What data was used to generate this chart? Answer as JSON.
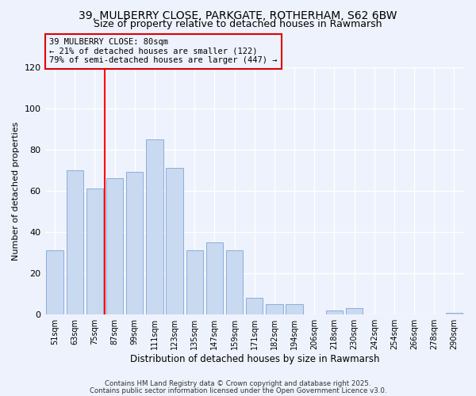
{
  "title1": "39, MULBERRY CLOSE, PARKGATE, ROTHERHAM, S62 6BW",
  "title2": "Size of property relative to detached houses in Rawmarsh",
  "xlabel": "Distribution of detached houses by size in Rawmarsh",
  "ylabel": "Number of detached properties",
  "categories": [
    "51sqm",
    "63sqm",
    "75sqm",
    "87sqm",
    "99sqm",
    "111sqm",
    "123sqm",
    "135sqm",
    "147sqm",
    "159sqm",
    "171sqm",
    "182sqm",
    "194sqm",
    "206sqm",
    "218sqm",
    "230sqm",
    "242sqm",
    "254sqm",
    "266sqm",
    "278sqm",
    "290sqm"
  ],
  "values": [
    31,
    70,
    61,
    66,
    69,
    85,
    71,
    31,
    35,
    31,
    8,
    5,
    5,
    0,
    2,
    3,
    0,
    0,
    0,
    0,
    1
  ],
  "bar_color": "#c8d9f0",
  "bar_edge_color": "#8aaedd",
  "red_line_index": 2,
  "annotation_title": "39 MULBERRY CLOSE: 80sqm",
  "annotation_line1": "← 21% of detached houses are smaller (122)",
  "annotation_line2": "79% of semi-detached houses are larger (447) →",
  "ylim": [
    0,
    120
  ],
  "yticks": [
    0,
    20,
    40,
    60,
    80,
    100,
    120
  ],
  "footer1": "Contains HM Land Registry data © Crown copyright and database right 2025.",
  "footer2": "Contains public sector information licensed under the Open Government Licence v3.0.",
  "bg_color": "#eef2fc",
  "grid_color": "#ffffff",
  "annotation_box_color": "#dd0000",
  "title1_fontsize": 10,
  "title2_fontsize": 9
}
